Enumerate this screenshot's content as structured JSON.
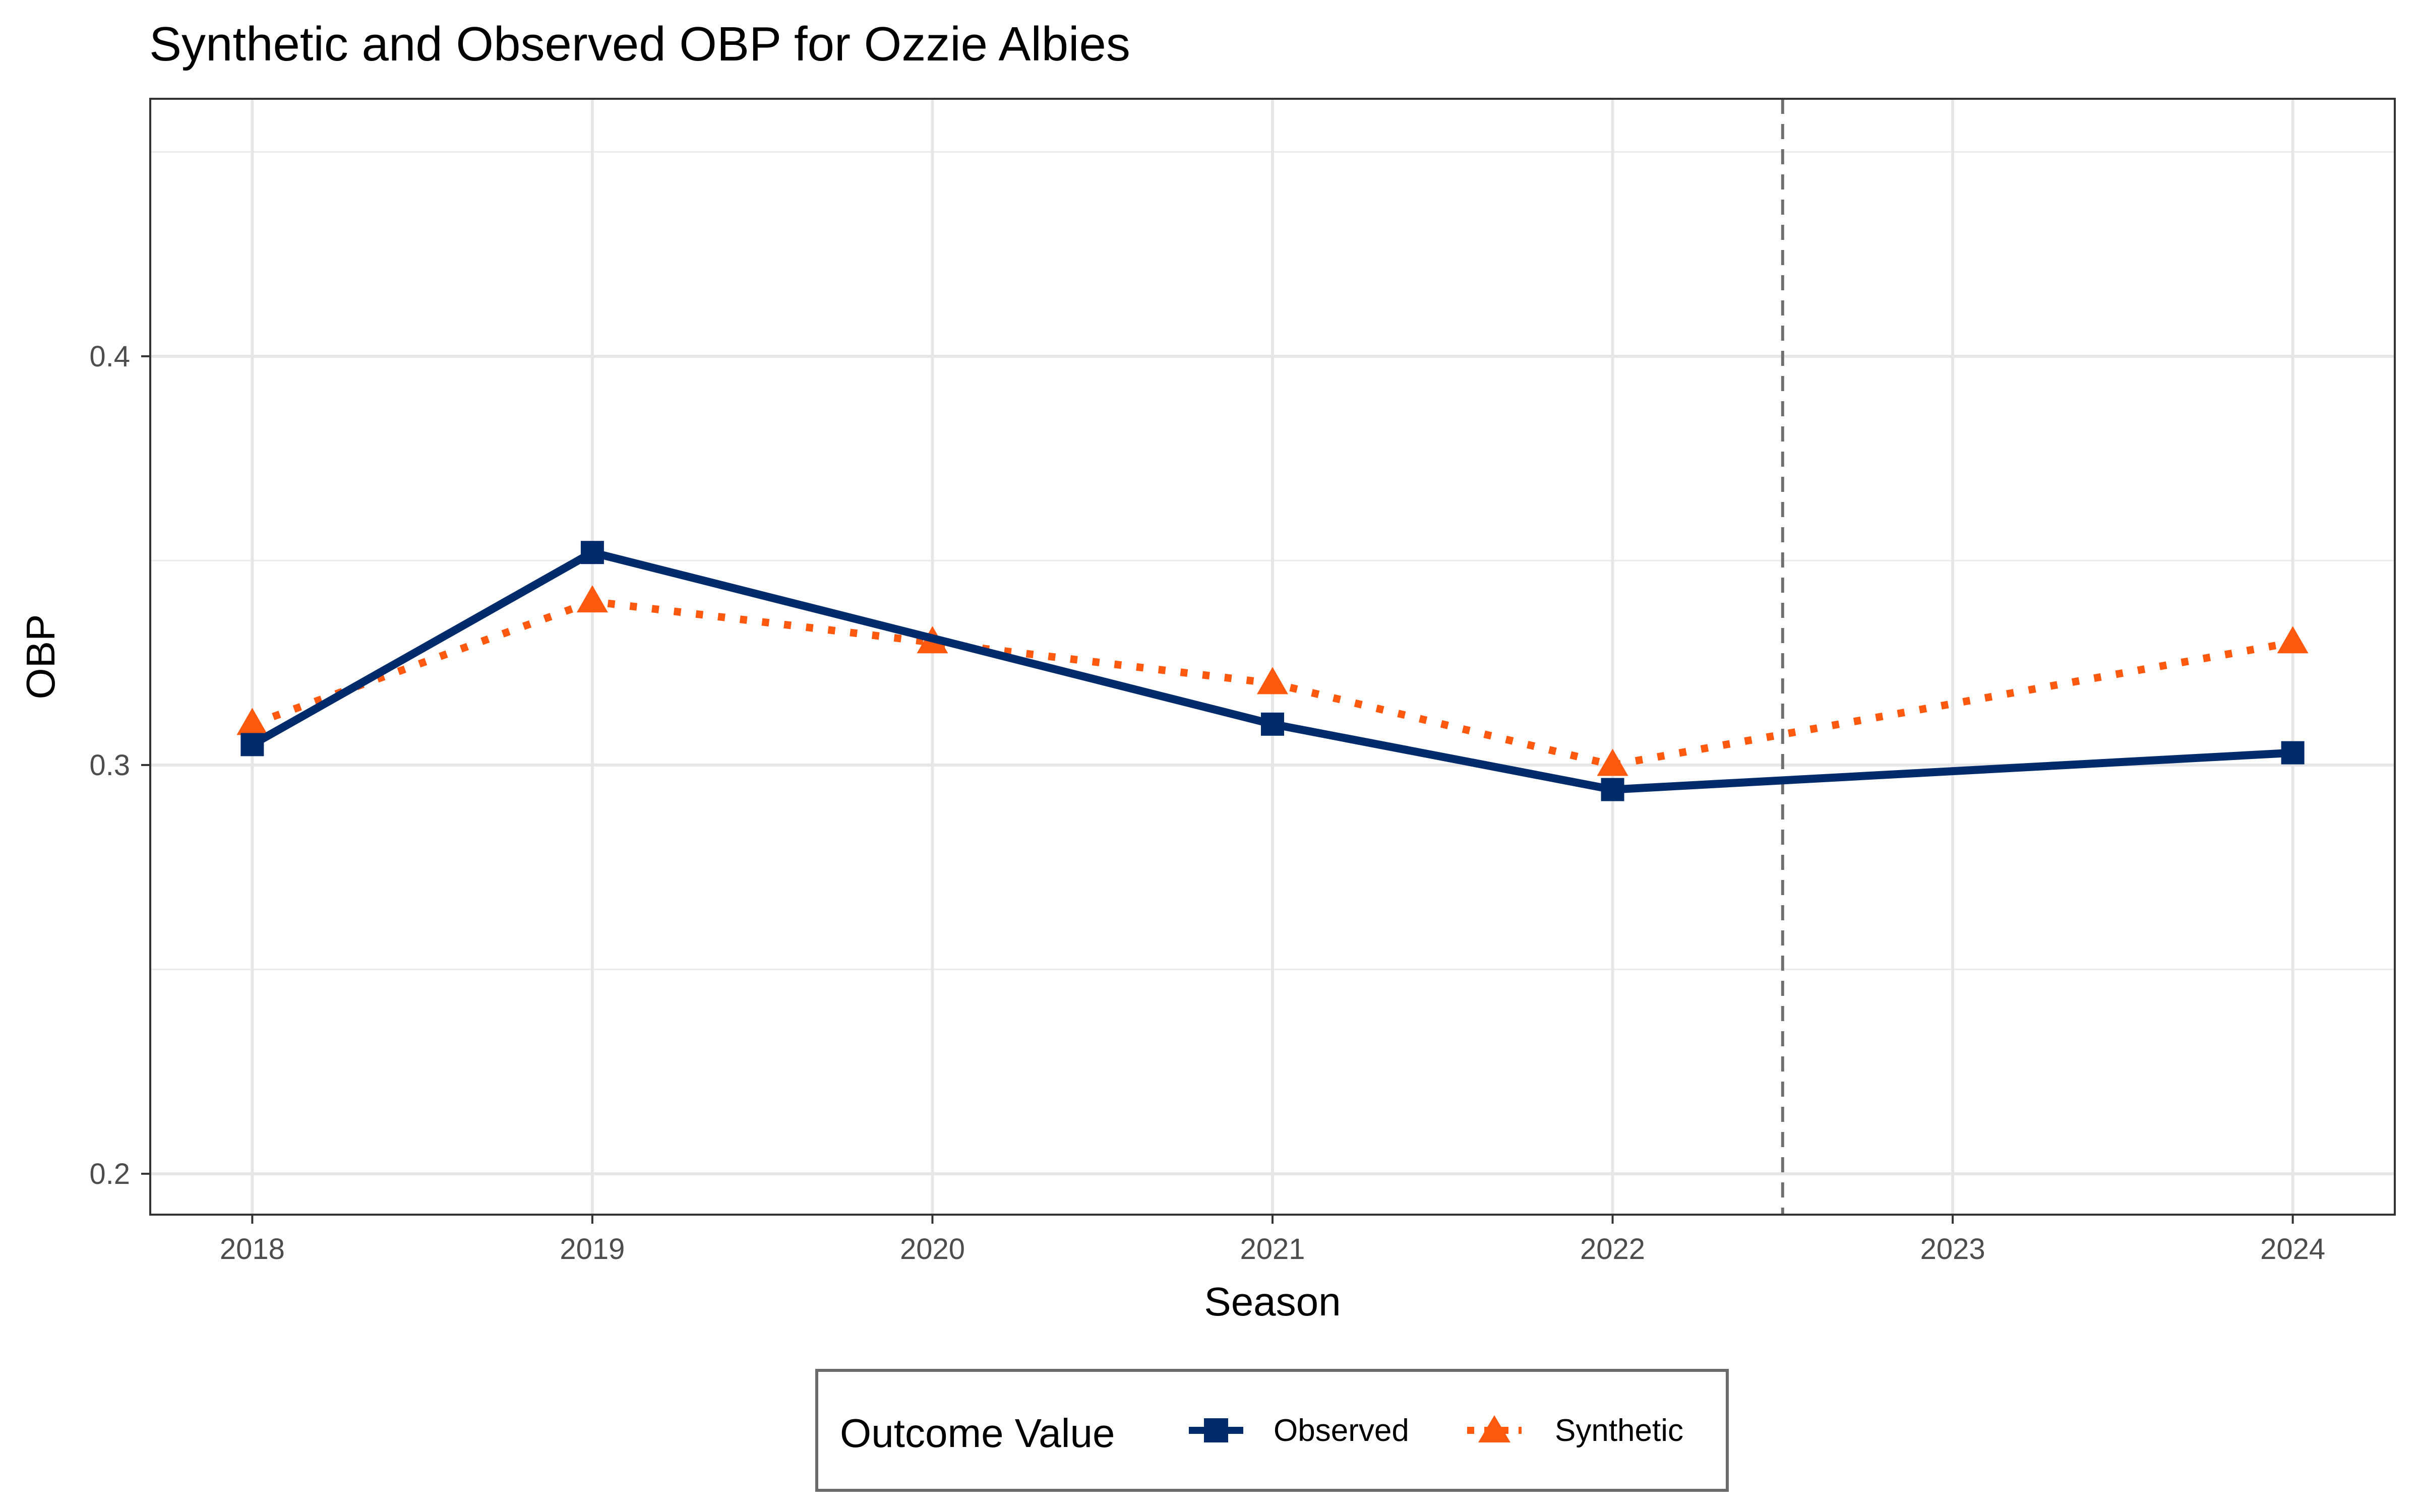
{
  "chart_data": {
    "type": "line",
    "title": "Synthetic and Observed OBP for Ozzie Albies",
    "xlabel": "Season",
    "ylabel": "OBP",
    "x_ticks": [
      "2018",
      "2019",
      "2020",
      "2021",
      "2022",
      "2023",
      "2024"
    ],
    "y_ticks": [
      "0.2",
      "0.3",
      "0.4"
    ],
    "xlim": [
      2017.7,
      2024.3
    ],
    "ylim": [
      0.19,
      0.463
    ],
    "grid": true,
    "treatment_line_x": 2022.5,
    "legend": {
      "title": "Outcome Value",
      "position": "bottom"
    },
    "series": [
      {
        "name": "Observed",
        "color": "#022B6C",
        "line_style": "solid",
        "marker": "square",
        "x": [
          2018,
          2019,
          2021,
          2022,
          2024
        ],
        "y": [
          0.305,
          0.352,
          0.31,
          0.294,
          0.303
        ]
      },
      {
        "name": "Synthetic",
        "color": "#FF5910",
        "line_style": "dotted",
        "marker": "triangle",
        "x": [
          2018,
          2019,
          2020,
          2021,
          2022,
          2024
        ],
        "y": [
          0.31,
          0.34,
          0.33,
          0.32,
          0.3,
          0.33
        ]
      }
    ]
  }
}
